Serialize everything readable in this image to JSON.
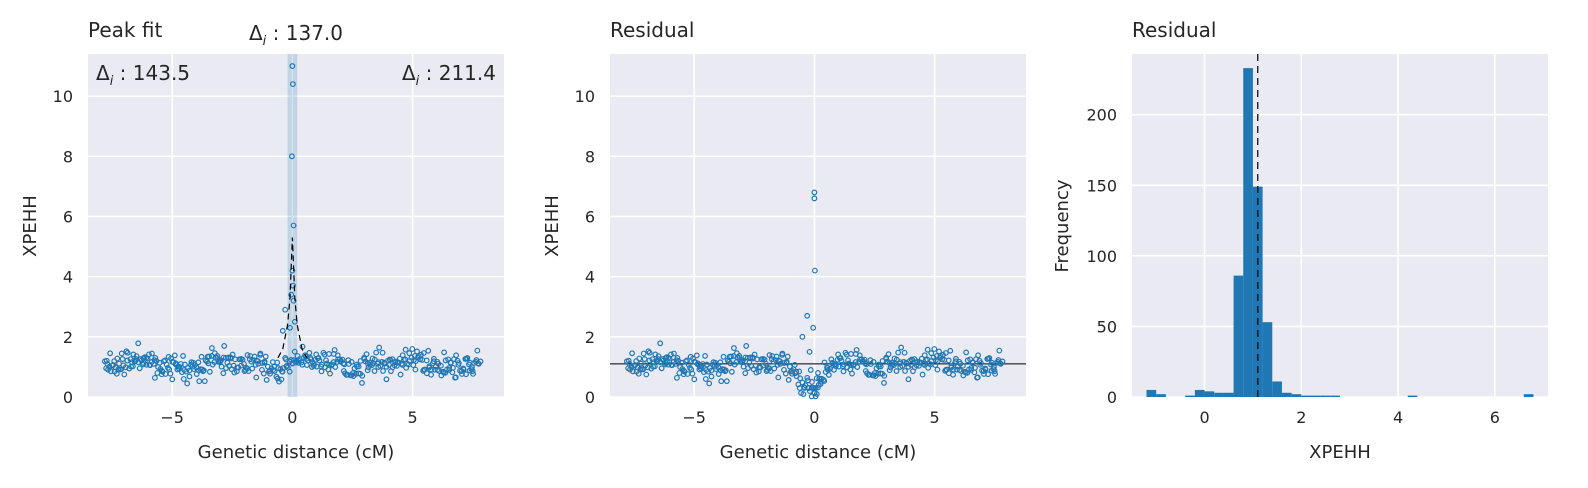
{
  "chart_data": [
    {
      "type": "scatter",
      "title": "Peak fit",
      "xlabel": "Genetic distance (cM)",
      "ylabel": "XPEHH",
      "xlim": [
        -8.5,
        8.8
      ],
      "ylim": [
        0,
        11.4
      ],
      "xticks": [
        -5,
        0,
        5
      ],
      "yticks": [
        0,
        2,
        4,
        6,
        8,
        10
      ],
      "grid": true,
      "color": "#1f77b4",
      "annotations": {
        "left": {
          "label": "Δ",
          "sub": "i",
          "value": " : 143.5"
        },
        "center": {
          "label": "Δ",
          "sub": "i",
          "value": " : 137.0"
        },
        "right": {
          "label": "Δ",
          "sub": "i",
          "value": " : 211.4"
        }
      },
      "shaded_band": [
        -0.2,
        0.2
      ],
      "fit_curve": {
        "style": "dashed",
        "color": "#000000",
        "x": [
          -0.6,
          -0.4,
          -0.2,
          -0.1,
          0.0,
          0.1,
          0.2,
          0.4,
          0.6
        ],
        "y": [
          1.3,
          1.6,
          2.4,
          3.3,
          5.3,
          3.3,
          2.4,
          1.6,
          1.3
        ]
      },
      "peak_points": {
        "x": [
          0.0,
          0.02,
          -0.02,
          0.05,
          0.0,
          0.03,
          -0.05,
          0.05,
          0.1,
          -0.1,
          -0.3,
          -0.4
        ],
        "y": [
          11.0,
          10.4,
          8.0,
          5.7,
          4.2,
          3.7,
          3.4,
          3.2,
          2.5,
          2.3,
          2.9,
          2.2
        ]
      },
      "noise": {
        "x_range": [
          -7.8,
          7.8
        ],
        "center": 1.1,
        "spread": 0.25,
        "n": 420,
        "seed": 11
      }
    },
    {
      "type": "scatter",
      "title": "Residual",
      "xlabel": "Genetic distance (cM)",
      "ylabel": "XPEHH",
      "xlim": [
        -8.5,
        8.8
      ],
      "ylim": [
        0,
        11.4
      ],
      "xticks": [
        -5,
        0,
        5
      ],
      "yticks": [
        0,
        2,
        4,
        6,
        8,
        10
      ],
      "grid": true,
      "color": "#1f77b4",
      "hline": 1.1,
      "peak_points": {
        "x": [
          0.0,
          0.0,
          0.02,
          -0.05,
          -0.3,
          -0.5,
          -0.2,
          0.0,
          0.1,
          -0.1,
          0.05,
          0.15,
          -0.15,
          0.2
        ],
        "y": [
          6.8,
          6.6,
          4.2,
          2.3,
          2.7,
          2.0,
          1.5,
          0.3,
          0.1,
          0.5,
          0.0,
          0.8,
          0.9,
          0.6
        ]
      },
      "noise": {
        "x_range": [
          -7.8,
          7.8
        ],
        "center": 1.1,
        "spread": 0.25,
        "n": 420,
        "seed": 11
      }
    },
    {
      "type": "bar",
      "title": "Residual",
      "xlabel": "XPEHH",
      "ylabel": "Frequency",
      "xlim": [
        -1.5,
        7.1
      ],
      "ylim": [
        0,
        243
      ],
      "xticks": [
        0,
        2,
        4,
        6
      ],
      "yticks": [
        0,
        50,
        100,
        150,
        200
      ],
      "grid": true,
      "color": "#1f77b4",
      "vline": 1.1,
      "bin_width": 0.2,
      "bin_starts": [
        -1.2,
        -1.0,
        -0.4,
        -0.2,
        0.0,
        0.2,
        0.4,
        0.6,
        0.8,
        1.0,
        1.2,
        1.4,
        1.6,
        1.8,
        2.0,
        2.2,
        2.4,
        2.6,
        4.2,
        6.6
      ],
      "values": [
        5,
        2,
        1,
        5,
        4,
        3,
        3,
        86,
        233,
        149,
        53,
        11,
        3,
        2,
        1,
        1,
        1,
        1,
        1,
        2
      ]
    }
  ]
}
